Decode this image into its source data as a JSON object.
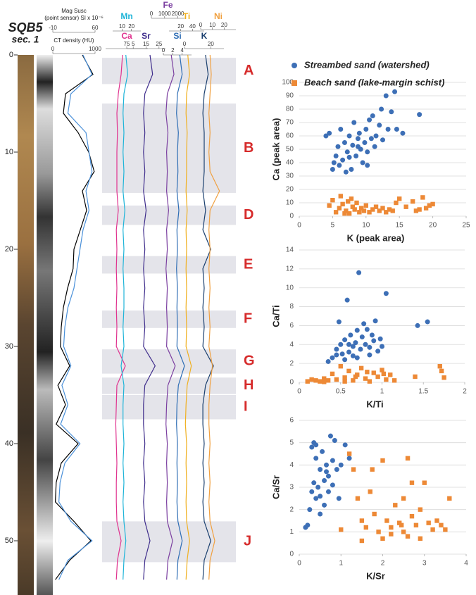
{
  "chart_data": [
    {
      "type": "depthlog",
      "title": "SQB5",
      "subtitle": "sec. 1",
      "ylim": [
        0,
        55
      ],
      "yticks": [
        0,
        10,
        20,
        30,
        40,
        50
      ],
      "depth": [
        0,
        2,
        4,
        6,
        8,
        10,
        12,
        14,
        16,
        18,
        20,
        22,
        24,
        26,
        28,
        30,
        32,
        34,
        36,
        38,
        40,
        42,
        44,
        46,
        48,
        50,
        52,
        54
      ],
      "zones": [
        {
          "label": "A",
          "start": 0.3,
          "end": 3
        },
        {
          "label": "B",
          "start": 5,
          "end": 14.2
        },
        {
          "label": "D",
          "start": 15.5,
          "end": 17.5
        },
        {
          "label": "E",
          "start": 20.7,
          "end": 22.5
        },
        {
          "label": "F",
          "start": 26.3,
          "end": 28.1
        },
        {
          "label": "G",
          "start": 30.3,
          "end": 32.8
        },
        {
          "label": "H",
          "start": 33.2,
          "end": 34.9
        },
        {
          "label": "I",
          "start": 35,
          "end": 37.5
        },
        {
          "label": "J",
          "start": 48,
          "end": 52.2
        }
      ],
      "tracks": [
        {
          "name": "CT density (HU)",
          "color": "#000000",
          "xlim": [
            0,
            1000
          ],
          "xticks": [
            0,
            1000
          ],
          "values": [
            700,
            950,
            300,
            250,
            600,
            850,
            980,
            700,
            800,
            650,
            500,
            480,
            350,
            250,
            200,
            180,
            400,
            120,
            300,
            80,
            600,
            200,
            80,
            60,
            500,
            900,
            400,
            60
          ]
        },
        {
          "name": "Mag Susc",
          "subname": "(point sensor) SI x 10⁻⁶",
          "color": "#4a90d9",
          "xlim": [
            -10,
            60
          ],
          "xticks": [
            -10,
            60
          ],
          "values": [
            40,
            55,
            20,
            15,
            45,
            50,
            55,
            45,
            50,
            40,
            35,
            30,
            25,
            15,
            10,
            8,
            20,
            5,
            15,
            3,
            35,
            10,
            2,
            0,
            20,
            55,
            15,
            0
          ]
        },
        {
          "name": "Ca",
          "color": "#e0338f",
          "xlim": [
            0,
            150
          ],
          "xticks": [
            75
          ],
          "values": [
            60,
            55,
            45,
            40,
            42,
            40,
            40,
            40,
            45,
            38,
            40,
            38,
            40,
            38,
            40,
            38,
            70,
            40,
            38,
            36,
            38,
            40,
            38,
            38,
            40,
            55,
            42,
            38
          ]
        },
        {
          "name": "Mn",
          "color": "#1eb4d8",
          "xlim": [
            0,
            30
          ],
          "xticks": [
            10,
            20
          ],
          "values": [
            14,
            16,
            12,
            11,
            12,
            11,
            12,
            11,
            13,
            11,
            12,
            11,
            12,
            12,
            11,
            12,
            9,
            12,
            11,
            11,
            12,
            11,
            12,
            11,
            12,
            14,
            12,
            11
          ]
        },
        {
          "name": "Sr",
          "color": "#3f2d8c",
          "xlim": [
            0,
            30
          ],
          "xticks": [
            5,
            15,
            25
          ],
          "values": [
            18,
            20,
            14,
            13,
            14,
            13,
            14,
            13,
            15,
            13,
            14,
            13,
            14,
            13,
            14,
            13,
            22,
            14,
            13,
            13,
            14,
            13,
            14,
            13,
            14,
            18,
            14,
            13
          ]
        },
        {
          "name": "Fe",
          "color": "#7b3fa0",
          "xlim": [
            0,
            2500
          ],
          "xticks": [
            0,
            1000,
            2000
          ],
          "values": [
            1500,
            1700,
            1200,
            1100,
            1250,
            1150,
            1200,
            1150,
            1300,
            1150,
            1200,
            1100,
            1200,
            1150,
            1200,
            1150,
            1800,
            1250,
            1150,
            1100,
            1200,
            1150,
            1200,
            1150,
            1200,
            1600,
            1250,
            1150
          ]
        },
        {
          "name": "Si",
          "color": "#2e6db4",
          "xlim": [
            0,
            6
          ],
          "xticks": [
            0,
            2,
            4
          ],
          "values": [
            3.5,
            4,
            3,
            2.8,
            3.2,
            3,
            3.1,
            2.9,
            3.3,
            2.9,
            3,
            2.8,
            3,
            2.9,
            3,
            2.9,
            4.5,
            3.2,
            2.9,
            2.8,
            3,
            2.9,
            3,
            2.9,
            3.1,
            4,
            3.1,
            2.9
          ]
        },
        {
          "name": "Ti",
          "color": "#f0b020",
          "xlim": [
            0,
            60
          ],
          "xticks": [
            20,
            40
          ],
          "values": [
            32,
            35,
            30,
            29,
            31,
            30,
            30,
            29,
            31,
            29,
            30,
            29,
            30,
            29,
            30,
            29,
            38,
            31,
            29,
            28,
            30,
            29,
            30,
            29,
            30,
            35,
            31,
            29
          ]
        },
        {
          "name": "K",
          "color": "#1a3f6e",
          "xlim": [
            0,
            30
          ],
          "xticks": [
            0,
            20
          ],
          "values": [
            16,
            18,
            15,
            14,
            15,
            15,
            15,
            14,
            16,
            14,
            20,
            14,
            15,
            14,
            15,
            14,
            22,
            16,
            14,
            14,
            15,
            14,
            15,
            14,
            15,
            20,
            15,
            14
          ]
        },
        {
          "name": "Ni",
          "color": "#f0a040",
          "xlim": [
            0,
            30
          ],
          "xticks": [
            0,
            10,
            20
          ],
          "values": [
            8,
            9,
            8,
            7,
            8,
            7,
            8,
            16,
            8,
            7,
            8,
            7,
            8,
            7,
            8,
            7,
            10,
            8,
            7,
            7,
            8,
            7,
            8,
            7,
            8,
            12,
            8,
            7
          ]
        }
      ]
    },
    {
      "type": "scatter",
      "xlabel": "K (peak area)",
      "ylabel": "Ca (peak area)",
      "xlim": [
        0,
        25
      ],
      "xticks": [
        0,
        5,
        10,
        15,
        20,
        25
      ],
      "ylim": [
        0,
        100
      ],
      "yticks": [
        0,
        10,
        20,
        30,
        40,
        50,
        60,
        70,
        80,
        90,
        100
      ],
      "grid": true,
      "series": [
        {
          "name": "Streambed sand (watershed)",
          "color": "#3d6fb6",
          "marker": "circle",
          "x": [
            4,
            4.5,
            5,
            5.2,
            5.5,
            5.8,
            6,
            6.2,
            6.5,
            6.8,
            7,
            7.2,
            7.5,
            7.8,
            8,
            8.2,
            8.5,
            8.8,
            9,
            9.2,
            9.5,
            9.8,
            10,
            10.2,
            10.5,
            10.8,
            11,
            11.3,
            11.5,
            12,
            12.3,
            12.5,
            13,
            13.3,
            13.8,
            14.3,
            14.6,
            15.5,
            18,
            10.2,
            7.5,
            8.8
          ],
          "values": [
            60,
            62,
            35,
            40,
            45,
            52,
            38,
            65,
            42,
            55,
            33,
            48,
            60,
            35,
            53,
            70,
            45,
            58,
            62,
            50,
            40,
            55,
            65,
            48,
            72,
            58,
            75,
            52,
            60,
            68,
            80,
            57,
            90,
            65,
            78,
            93,
            65,
            62,
            76,
            38,
            44,
            52
          ]
        },
        {
          "name": "Beach sand (lake-margin schist)",
          "color": "#ed8936",
          "marker": "square",
          "x": [
            4.5,
            5,
            5.5,
            6,
            6.2,
            6.5,
            7,
            7.3,
            7.5,
            8,
            8.3,
            8.6,
            9,
            9.3,
            9.7,
            10,
            10.5,
            11,
            11.5,
            12,
            12.5,
            13,
            13.5,
            14,
            14.5,
            15,
            16,
            17,
            17.5,
            18,
            18.5,
            19,
            19.5,
            20,
            7.8,
            6.8
          ],
          "values": [
            8,
            12,
            3,
            6,
            15,
            9,
            4,
            11,
            2,
            7,
            5,
            10,
            3,
            6,
            4,
            8,
            3,
            5,
            7,
            4,
            6,
            3,
            5,
            4,
            10,
            13,
            7,
            11,
            4,
            5,
            14,
            6,
            8,
            9,
            13,
            2
          ]
        }
      ]
    },
    {
      "type": "scatter",
      "xlabel": "K/Ti",
      "ylabel": "Ca/Ti",
      "xlim": [
        0,
        2
      ],
      "xticks": [
        0,
        0.5,
        1,
        1.5,
        2
      ],
      "ylim": [
        0,
        14
      ],
      "yticks": [
        0,
        2,
        4,
        6,
        8,
        10,
        12,
        14
      ],
      "grid": true,
      "series": [
        {
          "color": "#3d6fb6",
          "marker": "circle",
          "x": [
            0.35,
            0.4,
            0.45,
            0.48,
            0.5,
            0.52,
            0.55,
            0.58,
            0.6,
            0.62,
            0.65,
            0.68,
            0.7,
            0.72,
            0.74,
            0.76,
            0.78,
            0.8,
            0.82,
            0.85,
            0.88,
            0.9,
            0.92,
            0.95,
            0.98,
            1,
            1.05,
            0.55,
            0.65,
            0.45,
            1.43,
            1.55,
            0.6,
            0.7,
            0.85
          ],
          "values": [
            2.2,
            2.6,
            3.5,
            6.4,
            4,
            3,
            4.5,
            8.7,
            3.2,
            5,
            3.8,
            4.2,
            5.5,
            11.6,
            3.5,
            4.8,
            6.2,
            4,
            5.6,
            3.7,
            5,
            4.4,
            6.5,
            3.3,
            4.6,
            3.8,
            9.4,
            2.4,
            2.8,
            2.9,
            6,
            6.4,
            4,
            2.6,
            2.9
          ]
        },
        {
          "color": "#ed8936",
          "marker": "square",
          "x": [
            0.1,
            0.15,
            0.2,
            0.25,
            0.3,
            0.35,
            0.4,
            0.45,
            0.5,
            0.55,
            0.6,
            0.65,
            0.7,
            0.75,
            0.8,
            0.85,
            0.9,
            0.95,
            1,
            1.05,
            1.1,
            1.15,
            1.4,
            1.7,
            1.72,
            1.75,
            0.3,
            0.55,
            0.68,
            0.82,
            1.02
          ],
          "values": [
            0.1,
            0.3,
            0.2,
            0.1,
            0.4,
            0.2,
            0.9,
            0.3,
            1.7,
            0.5,
            1.2,
            0.2,
            0.8,
            1.5,
            0.4,
            0.1,
            1,
            0.6,
            1.3,
            0.3,
            0.8,
            0.2,
            0.6,
            1.7,
            1.2,
            0.5,
            0.05,
            0.1,
            0.6,
            1.1,
            0.9
          ]
        }
      ]
    },
    {
      "type": "scatter",
      "xlabel": "K/Sr",
      "ylabel": "Ca/Sr",
      "xlim": [
        0,
        4
      ],
      "xticks": [
        0,
        1,
        2,
        3,
        4
      ],
      "ylim": [
        0,
        6
      ],
      "yticks": [
        0,
        1,
        2,
        3,
        4,
        5,
        6
      ],
      "grid": true,
      "series": [
        {
          "color": "#3d6fb6",
          "marker": "circle",
          "x": [
            0.15,
            0.2,
            0.25,
            0.3,
            0.3,
            0.35,
            0.35,
            0.4,
            0.4,
            0.45,
            0.5,
            0.5,
            0.55,
            0.6,
            0.6,
            0.65,
            0.7,
            0.7,
            0.75,
            0.8,
            0.8,
            0.85,
            0.9,
            0.95,
            1,
            1.1,
            1.2,
            0.5,
            0.4,
            0.65
          ],
          "values": [
            1.2,
            1.3,
            2,
            2.8,
            4.8,
            3.2,
            5,
            2.5,
            4.3,
            3,
            2.6,
            3.8,
            4.6,
            3.3,
            2.2,
            4,
            3.5,
            2.8,
            5.3,
            4.2,
            3.1,
            5.1,
            3.8,
            2.5,
            4,
            4.9,
            4.3,
            1.8,
            4.9,
            3.7
          ]
        },
        {
          "color": "#ed8936",
          "marker": "square",
          "x": [
            1,
            1.2,
            1.3,
            1.4,
            1.5,
            1.5,
            1.6,
            1.7,
            1.8,
            1.9,
            2,
            2,
            2.1,
            2.2,
            2.3,
            2.4,
            2.5,
            2.5,
            2.6,
            2.6,
            2.7,
            2.7,
            2.8,
            2.9,
            2.9,
            3,
            3.1,
            3.2,
            3.3,
            3.4,
            3.5,
            3.6,
            2.2,
            1.75,
            2.45
          ],
          "values": [
            1.1,
            4.5,
            3.8,
            2.5,
            1.5,
            0.6,
            1.2,
            2.8,
            1.8,
            1,
            0.7,
            4.2,
            1.5,
            1.2,
            2.2,
            1.4,
            1,
            2.5,
            4.3,
            0.8,
            1.7,
            3.2,
            1.3,
            2,
            0.7,
            3.2,
            1.4,
            1.1,
            1.5,
            1.3,
            1.1,
            2.5,
            0.9,
            3.8,
            1.3
          ]
        }
      ]
    }
  ]
}
